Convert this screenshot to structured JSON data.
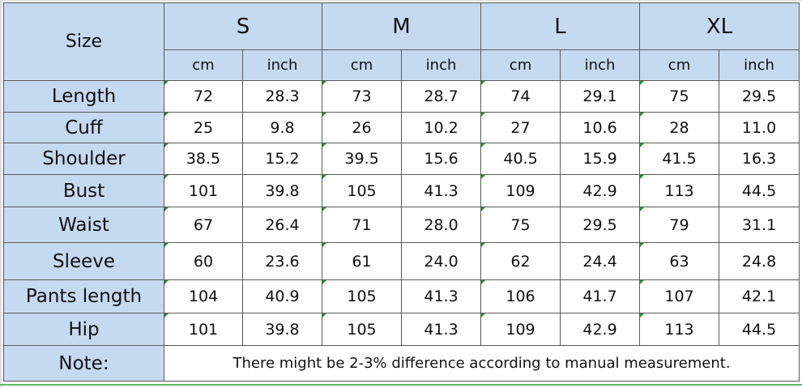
{
  "header": {
    "size_label": "Size",
    "sizes": [
      "S",
      "M",
      "L",
      "XL"
    ],
    "unit_cm": "cm",
    "unit_inch": "inch"
  },
  "rows": [
    {
      "label": "Length",
      "values": [
        "72",
        "28.3",
        "73",
        "28.7",
        "74",
        "29.1",
        "75",
        "29.5"
      ]
    },
    {
      "label": "Cuff",
      "values": [
        "25",
        "9.8",
        "26",
        "10.2",
        "27",
        "10.6",
        "28",
        "11.0"
      ]
    },
    {
      "label": "Shoulder",
      "values": [
        "38.5",
        "15.2",
        "39.5",
        "15.6",
        "40.5",
        "15.9",
        "41.5",
        "16.3"
      ]
    },
    {
      "label": "Bust",
      "values": [
        "101",
        "39.8",
        "105",
        "41.3",
        "109",
        "42.9",
        "113",
        "44.5"
      ]
    },
    {
      "label": "Waist",
      "values": [
        "67",
        "26.4",
        "71",
        "28.0",
        "75",
        "29.5",
        "79",
        "31.1"
      ]
    },
    {
      "label": "Sleeve",
      "values": [
        "60",
        "23.6",
        "61",
        "24.0",
        "62",
        "24.4",
        "63",
        "24.8"
      ]
    },
    {
      "label": "Pants length",
      "values": [
        "104",
        "40.9",
        "105",
        "41.3",
        "106",
        "41.7",
        "107",
        "42.1"
      ]
    },
    {
      "label": "Hip",
      "values": [
        "101",
        "39.8",
        "105",
        "41.3",
        "109",
        "42.9",
        "113",
        "44.5"
      ]
    }
  ],
  "note": {
    "label": "Note:",
    "text": "There might be 2-3% difference according to manual measurement."
  }
}
